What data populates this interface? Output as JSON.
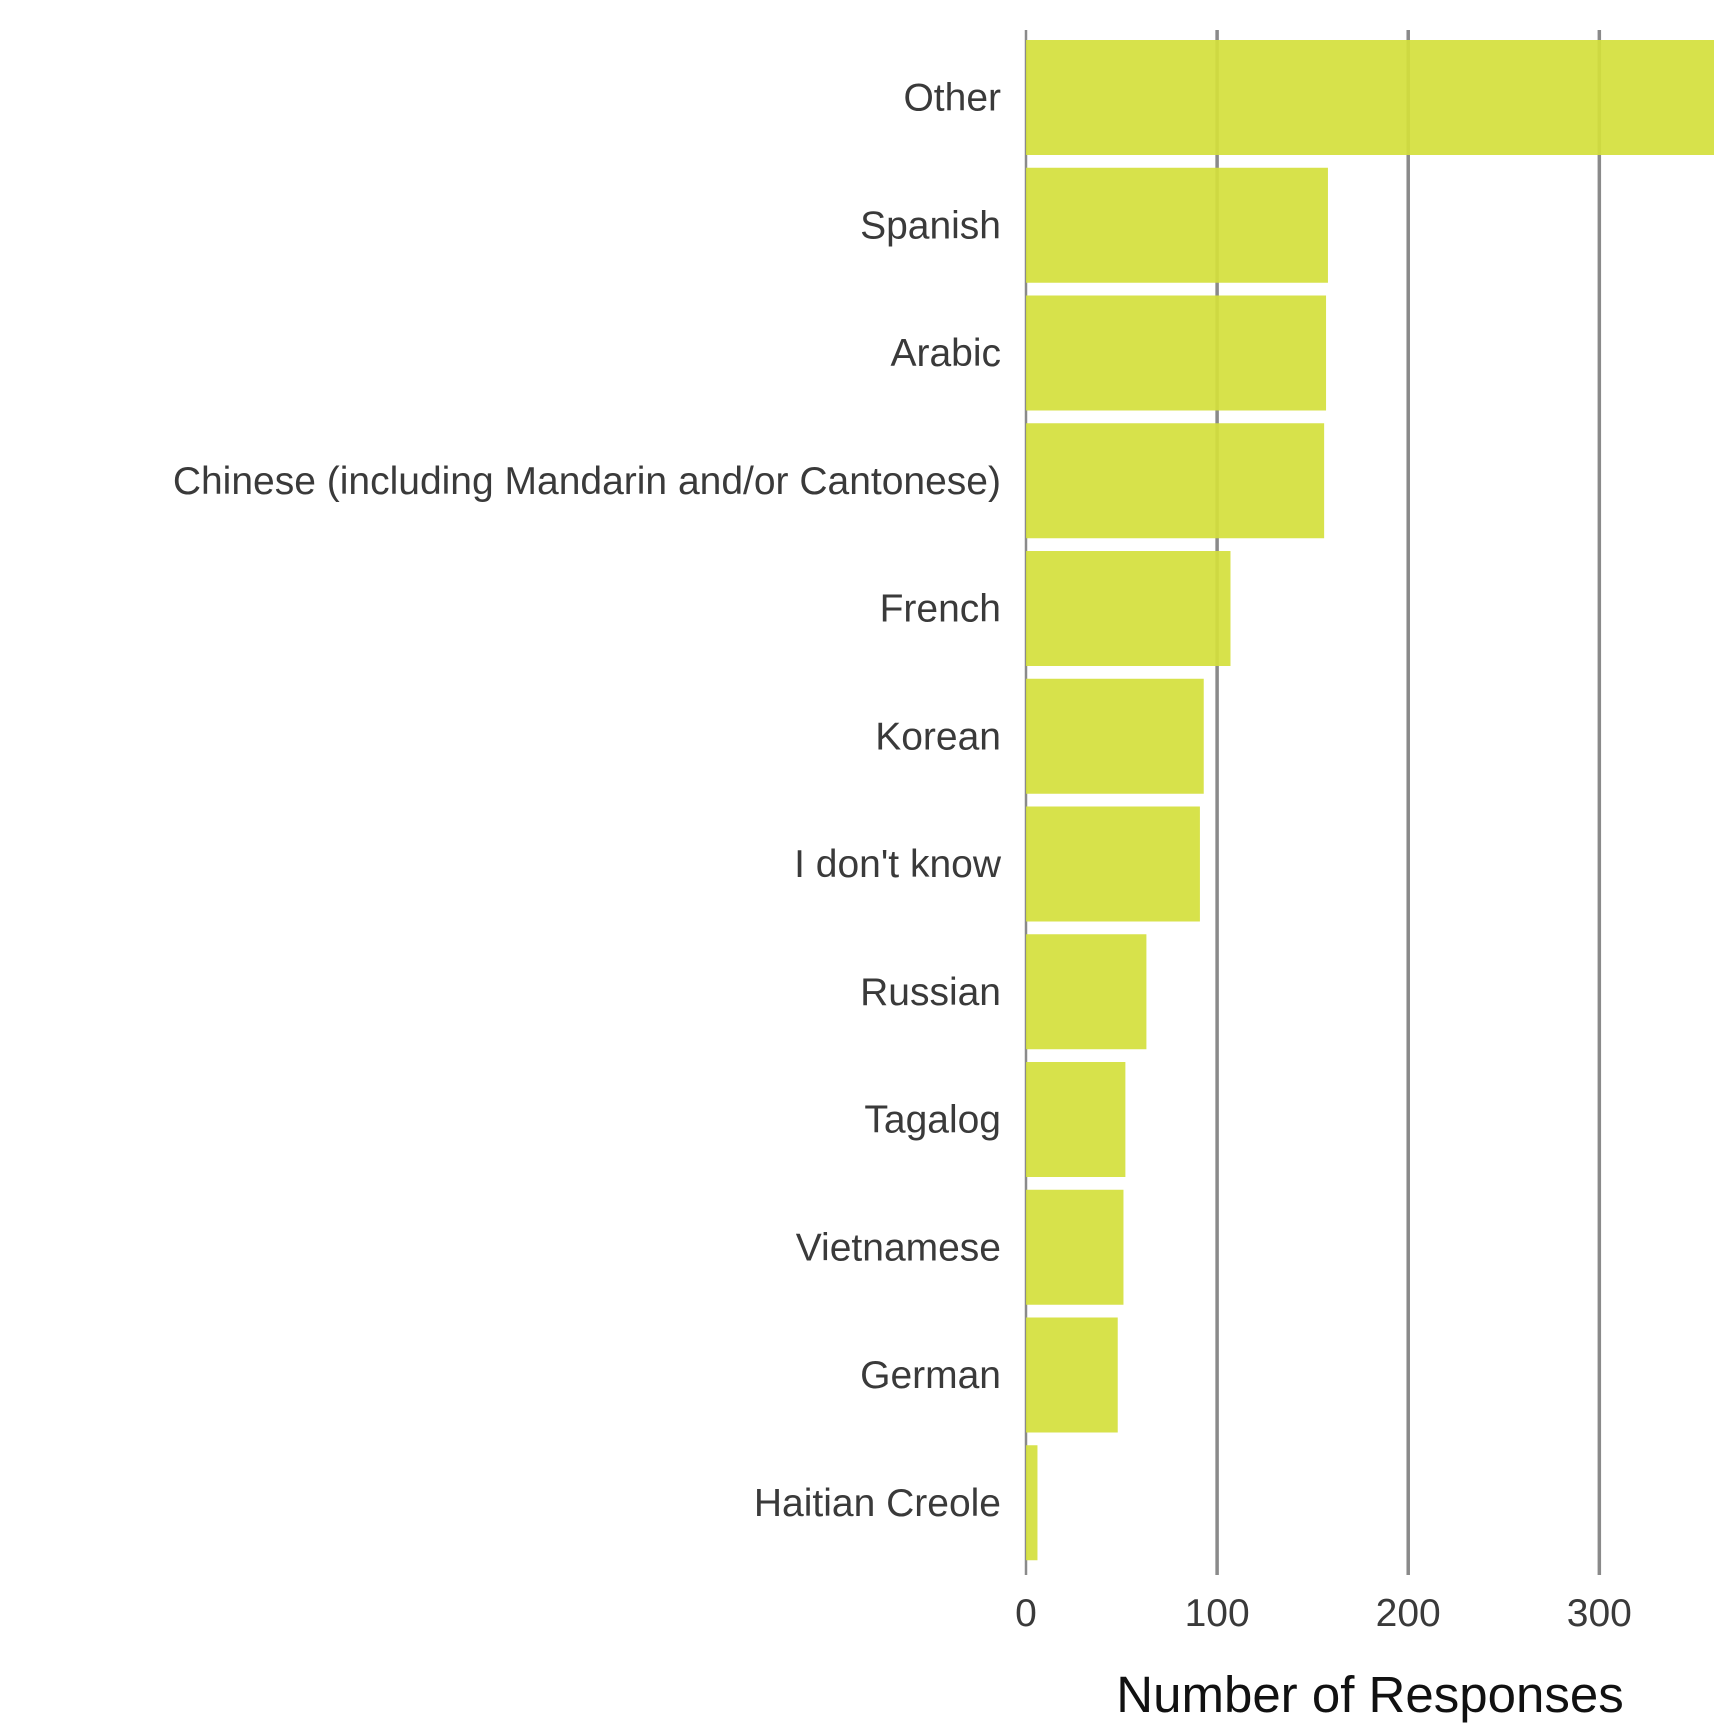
{
  "chart_data": {
    "type": "bar",
    "orientation": "horizontal",
    "categories": [
      "Other",
      "Spanish",
      "Arabic",
      "Chinese (including Mandarin and/or Cantonese)",
      "French",
      "Korean",
      "I don't know",
      "Russian",
      "Tagalog",
      "Vietnamese",
      "German",
      "Haitian Creole"
    ],
    "values": [
      360,
      158,
      157,
      156,
      107,
      93,
      91,
      63,
      52,
      51,
      48,
      6
    ],
    "title": "",
    "xlabel": "Number of Responses",
    "ylabel": "",
    "xlim": [
      0,
      360
    ],
    "xticks": [
      0,
      100,
      200,
      300
    ],
    "grid": "vertical",
    "legend": "none",
    "bar_color": "#d4e03c",
    "grid_color": "#8a8a8a",
    "tick_label_color": "#3a3a3a",
    "axis_title_color": "#111111"
  }
}
